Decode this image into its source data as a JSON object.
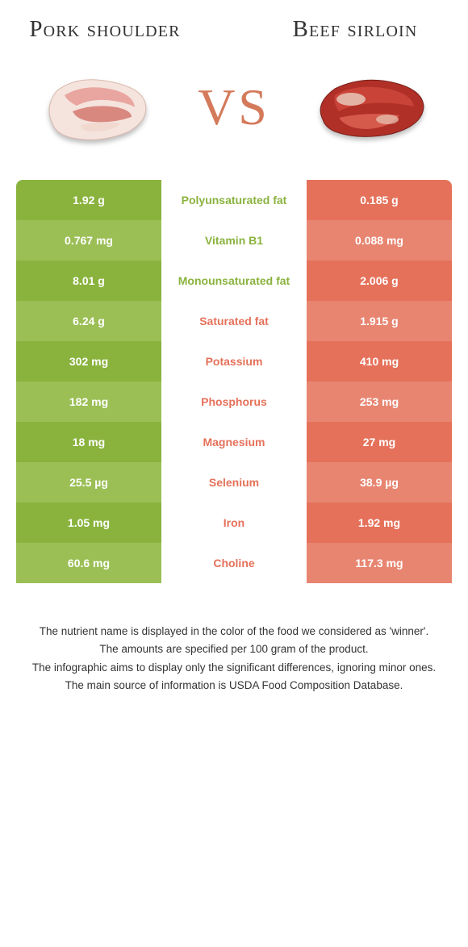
{
  "left_title": "Pork shoulder",
  "right_title": "Beef sirloin",
  "vs_label": "VS",
  "colors": {
    "left": "#8ab33e",
    "right": "#e5715a",
    "left_alt": "#9bbf55",
    "right_alt": "#e88571",
    "mid_left_text": "#8ab33e",
    "mid_right_text": "#e5715a"
  },
  "rows": [
    {
      "name": "Polyunsaturated fat",
      "left": "1.92 g",
      "right": "0.185 g",
      "winner": "left"
    },
    {
      "name": "Vitamin B1",
      "left": "0.767 mg",
      "right": "0.088 mg",
      "winner": "left"
    },
    {
      "name": "Monounsaturated fat",
      "left": "8.01 g",
      "right": "2.006 g",
      "winner": "left"
    },
    {
      "name": "Saturated fat",
      "left": "6.24 g",
      "right": "1.915 g",
      "winner": "right"
    },
    {
      "name": "Potassium",
      "left": "302 mg",
      "right": "410 mg",
      "winner": "right"
    },
    {
      "name": "Phosphorus",
      "left": "182 mg",
      "right": "253 mg",
      "winner": "right"
    },
    {
      "name": "Magnesium",
      "left": "18 mg",
      "right": "27 mg",
      "winner": "right"
    },
    {
      "name": "Selenium",
      "left": "25.5 µg",
      "right": "38.9 µg",
      "winner": "right"
    },
    {
      "name": "Iron",
      "left": "1.05 mg",
      "right": "1.92 mg",
      "winner": "right"
    },
    {
      "name": "Choline",
      "left": "60.6 mg",
      "right": "117.3 mg",
      "winner": "right"
    }
  ],
  "footnotes": [
    "The nutrient name is displayed in the color of the food we considered as 'winner'.",
    "The amounts are specified per 100 gram of the product.",
    "The infographic aims to display only the significant differences, ignoring minor ones.",
    "The main source of information is USDA Food Composition Database."
  ]
}
